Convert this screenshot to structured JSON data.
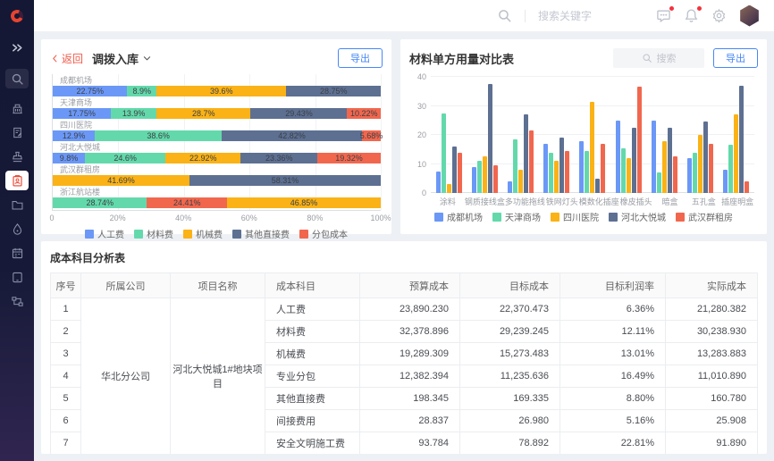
{
  "header": {
    "search_placeholder": "搜索关键字"
  },
  "sidebar": {
    "items": [
      {
        "icon": "expand"
      },
      {
        "icon": "search",
        "boxed": true
      },
      {
        "icon": "building"
      },
      {
        "icon": "document-edit"
      },
      {
        "icon": "stamp"
      },
      {
        "icon": "clipboard",
        "active": true
      },
      {
        "icon": "folder"
      },
      {
        "icon": "droplet"
      },
      {
        "icon": "calendar"
      },
      {
        "icon": "tablet"
      },
      {
        "icon": "workflow"
      }
    ]
  },
  "panel_left": {
    "back_label": "返回",
    "title": "调拨入库",
    "export_label": "导出"
  },
  "panel_right": {
    "title": "材料单方用量对比表",
    "search_placeholder": "搜索",
    "export_label": "导出"
  },
  "table_section": {
    "title": "成本科目分析表",
    "columns": [
      "序号",
      "所属公司",
      "项目名称",
      "成本科目",
      "预算成本",
      "目标成本",
      "目标利润率",
      "实际成本"
    ],
    "company": "华北分公司",
    "project": "河北大悦城1#地块项目",
    "rows": [
      [
        "1",
        "人工费",
        "23,890.230",
        "22,370.473",
        "6.36%",
        "21,280.382"
      ],
      [
        "2",
        "材料费",
        "32,378.896",
        "29,239.245",
        "12.11%",
        "30,238.930"
      ],
      [
        "3",
        "机械费",
        "19,289.309",
        "15,273.483",
        "13.01%",
        "13,283.883"
      ],
      [
        "4",
        "专业分包",
        "12,382.394",
        "11,235.636",
        "16.49%",
        "11,010.890"
      ],
      [
        "5",
        "其他直接费",
        "198.345",
        "169.335",
        "8.80%",
        "160.780"
      ],
      [
        "6",
        "间接费用",
        "28.837",
        "26.980",
        "5.16%",
        "25.908"
      ],
      [
        "7",
        "安全文明施工费",
        "93.784",
        "78.892",
        "22.81%",
        "91.890"
      ]
    ]
  },
  "chart_data": [
    {
      "type": "bar",
      "variant": "horizontal-stacked",
      "title": "调拨入库",
      "unit": "%",
      "xlim": [
        0,
        100
      ],
      "x_ticks": [
        "0",
        "20%",
        "40%",
        "60%",
        "80%",
        "100%"
      ],
      "x_tick_positions": [
        0,
        20,
        40,
        60,
        80,
        100
      ],
      "grid": true,
      "legend_position": "bottom",
      "legend": [
        {
          "name": "人工费",
          "color": "#6B98F7"
        },
        {
          "name": "材料费",
          "color": "#63D9AB"
        },
        {
          "name": "机械费",
          "color": "#FAB216"
        },
        {
          "name": "其他直接费",
          "color": "#5D7092"
        },
        {
          "name": "分包成本",
          "color": "#F1674E"
        }
      ],
      "bars": [
        {
          "category": "成都机场",
          "segments": [
            {
              "series": "人工费",
              "value": 22.75
            },
            {
              "series": "材料费",
              "value": 8.9
            },
            {
              "series": "机械费",
              "value": 39.6
            },
            {
              "series": "其他直接费",
              "value": 28.75
            }
          ]
        },
        {
          "category": "天津商场",
          "segments": [
            {
              "series": "人工费",
              "value": 17.75
            },
            {
              "series": "材料费",
              "value": 13.9
            },
            {
              "series": "机械费",
              "value": 28.7
            },
            {
              "series": "其他直接费",
              "value": 29.43
            },
            {
              "series": "分包成本",
              "value": 10.22
            }
          ]
        },
        {
          "category": "四川医院",
          "segments": [
            {
              "series": "人工费",
              "value": 12.9
            },
            {
              "series": "材料费",
              "value": 38.6
            },
            {
              "series": "其他直接费",
              "value": 42.82
            },
            {
              "series": "分包成本",
              "value": 5.68
            }
          ]
        },
        {
          "category": "河北大悦城",
          "segments": [
            {
              "series": "人工费",
              "value": 9.8
            },
            {
              "series": "材料费",
              "value": 24.6
            },
            {
              "series": "机械费",
              "value": 22.92
            },
            {
              "series": "其他直接费",
              "value": 23.36
            },
            {
              "series": "分包成本",
              "value": 19.32
            }
          ]
        },
        {
          "category": "武汉群租房",
          "segments": [
            {
              "series": "机械费",
              "value": 41.69
            },
            {
              "series": "其他直接费",
              "value": 58.31
            }
          ]
        },
        {
          "category": "浙江航站楼",
          "segments": [
            {
              "series": "材料费",
              "value": 28.74
            },
            {
              "series": "分包成本",
              "value": 24.41
            },
            {
              "series": "机械费",
              "value": 46.85
            }
          ]
        }
      ]
    },
    {
      "type": "bar",
      "variant": "vertical-grouped",
      "title": "材料单方用量对比表",
      "categories": [
        "涂料",
        "钢质接线盒",
        "多功能拖线",
        "铁网灯头",
        "模数化插座",
        "橡皮插头",
        "暗盒",
        "五孔盒",
        "插座明盒"
      ],
      "series": [
        {
          "name": "成都机场",
          "color": "#6B98F7",
          "values": [
            7.5,
            9,
            4,
            17,
            18,
            25,
            25,
            12,
            8
          ]
        },
        {
          "name": "天津商场",
          "color": "#63D9AB",
          "values": [
            27.5,
            11,
            18.5,
            14,
            14.5,
            15.5,
            7,
            14,
            16.5
          ]
        },
        {
          "name": "四川医院",
          "color": "#FAB216",
          "values": [
            3,
            12.5,
            8,
            11,
            31.5,
            12,
            18,
            20,
            27
          ]
        },
        {
          "name": "河北大悦城",
          "color": "#5D7092",
          "values": [
            16,
            37.5,
            27,
            19,
            5,
            22.5,
            22.5,
            24.5,
            37
          ]
        },
        {
          "name": "武汉群租房",
          "color": "#F1674E",
          "values": [
            14,
            9.5,
            21.5,
            14.5,
            17,
            36.5,
            12.5,
            17,
            4
          ]
        }
      ],
      "ylim": [
        0,
        40
      ],
      "y_ticks": [
        0,
        10,
        20,
        30,
        40
      ],
      "grid": true,
      "legend_position": "bottom"
    }
  ]
}
